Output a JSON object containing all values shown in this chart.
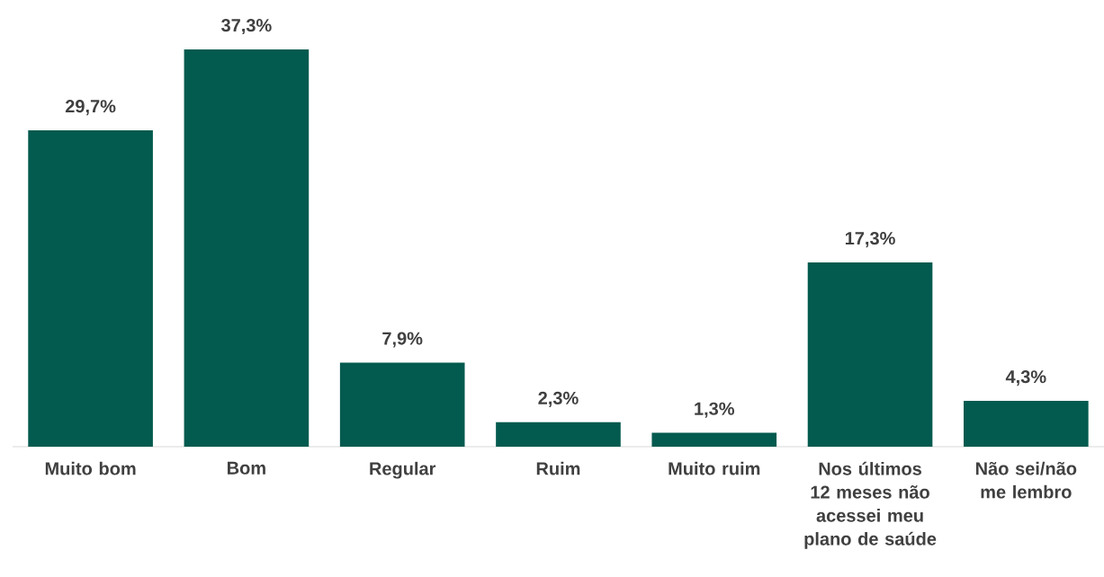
{
  "chart_data": {
    "type": "bar",
    "categories": [
      "Muito bom",
      "Bom",
      "Regular",
      "Ruim",
      "Muito ruim",
      "Nos últimos 12 meses não acessei meu plano de saúde",
      "Não sei/não me lembro"
    ],
    "values": [
      29.7,
      37.3,
      7.9,
      2.3,
      1.3,
      17.3,
      4.3
    ],
    "value_labels": [
      "29,7%",
      "37,3%",
      "7,9%",
      "2,3%",
      "1,3%",
      "17,3%",
      "4,3%"
    ],
    "color": "#035a4f"
  }
}
